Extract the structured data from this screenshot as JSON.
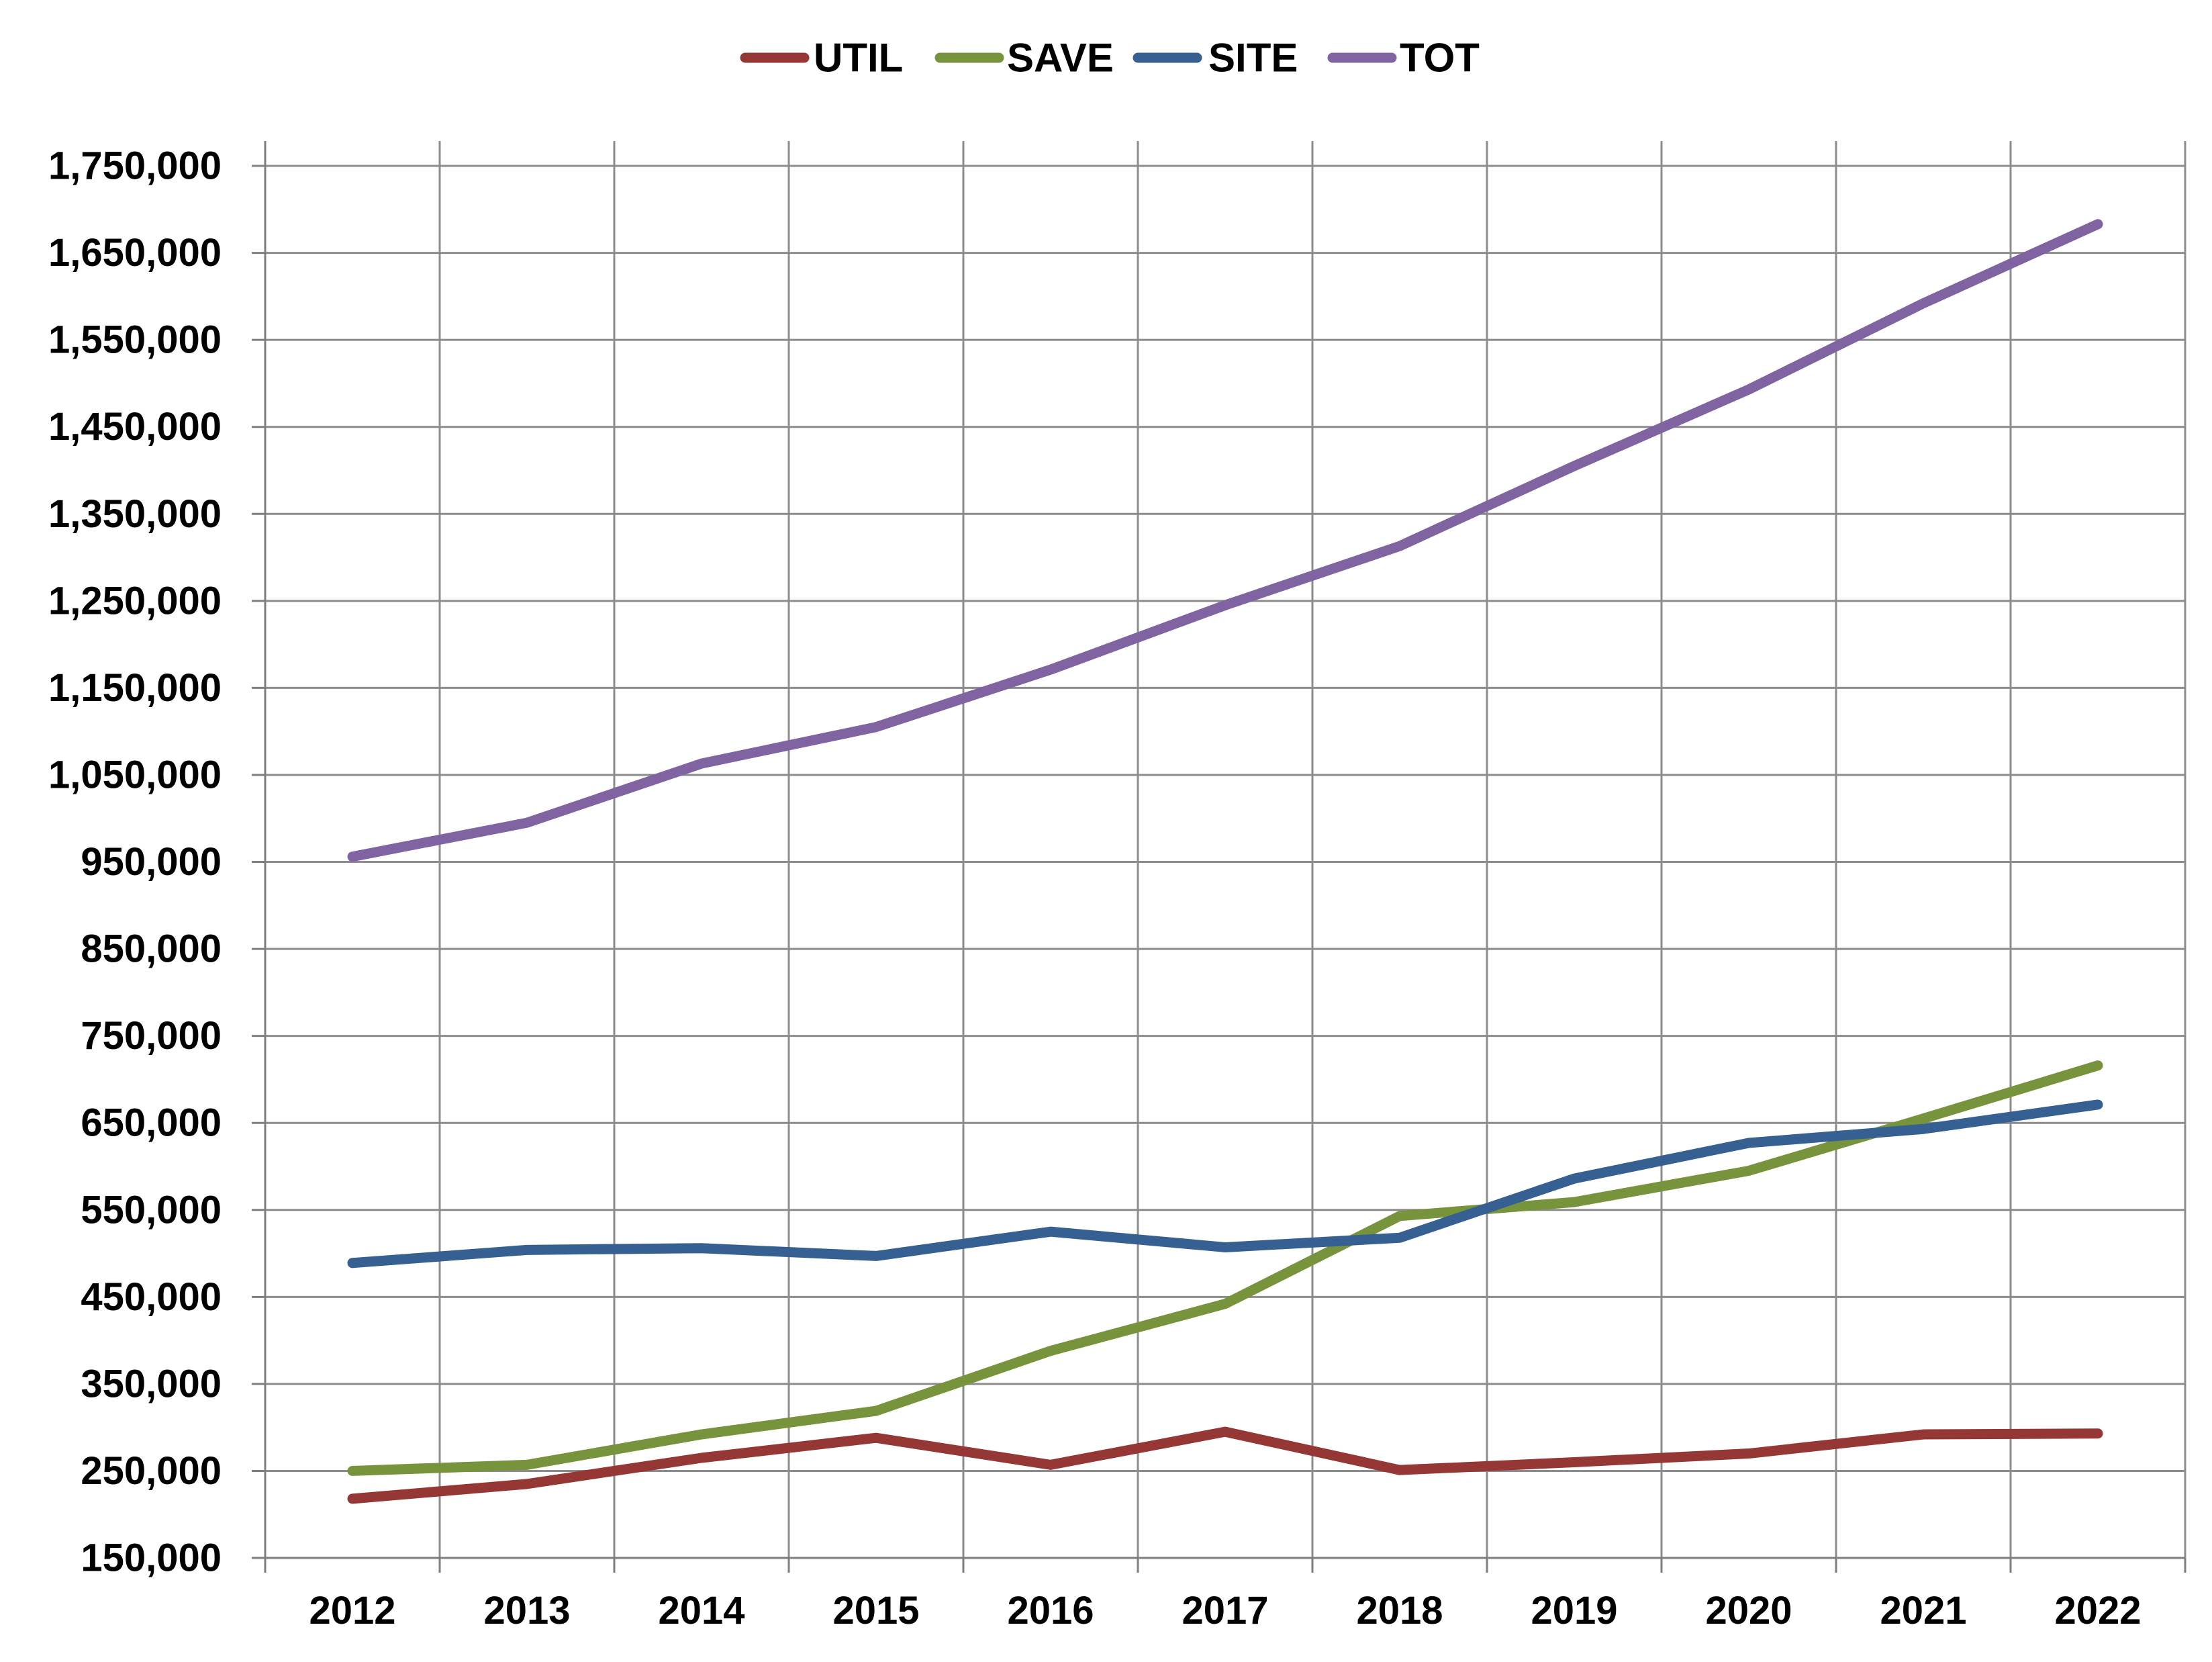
{
  "chart_data": {
    "type": "line",
    "title": "",
    "xlabel": "",
    "ylabel": "",
    "categories": [
      "2012",
      "2013",
      "2014",
      "2015",
      "2016",
      "2017",
      "2018",
      "2019",
      "2020",
      "2021",
      "2022"
    ],
    "ylim": [
      150000,
      1750000
    ],
    "yticks": [
      150000,
      250000,
      350000,
      450000,
      550000,
      650000,
      750000,
      850000,
      950000,
      1050000,
      1150000,
      1250000,
      1350000,
      1450000,
      1550000,
      1650000,
      1750000
    ],
    "ytick_labels": [
      "150,000",
      "250,000",
      "350,000",
      "450,000",
      "550,000",
      "650,000",
      "750,000",
      "850,000",
      "950,000",
      "1,050,000",
      "1,150,000",
      "1,250,000",
      "1,350,000",
      "1,450,000",
      "1,550,000",
      "1,650,000",
      "1,750,000"
    ],
    "grid": true,
    "legend_position": "top-center",
    "series": [
      {
        "name": "UTIL",
        "color": "#953735",
        "values": [
          218000,
          235000,
          265000,
          288000,
          257000,
          295000,
          251000,
          260000,
          270000,
          292000,
          293000
        ]
      },
      {
        "name": "SAVE",
        "color": "#77933c",
        "values": [
          250000,
          257000,
          292000,
          319000,
          388000,
          442000,
          543000,
          559000,
          595000,
          655000,
          716000
        ]
      },
      {
        "name": "SITE",
        "color": "#376092",
        "values": [
          489000,
          504000,
          506000,
          497000,
          525000,
          507000,
          518000,
          586000,
          627000,
          643000,
          671000
        ]
      },
      {
        "name": "TOT",
        "color": "#8064a2",
        "values": [
          956000,
          995000,
          1063000,
          1105000,
          1171000,
          1245000,
          1313000,
          1405000,
          1493000,
          1592000,
          1683000
        ]
      }
    ]
  }
}
